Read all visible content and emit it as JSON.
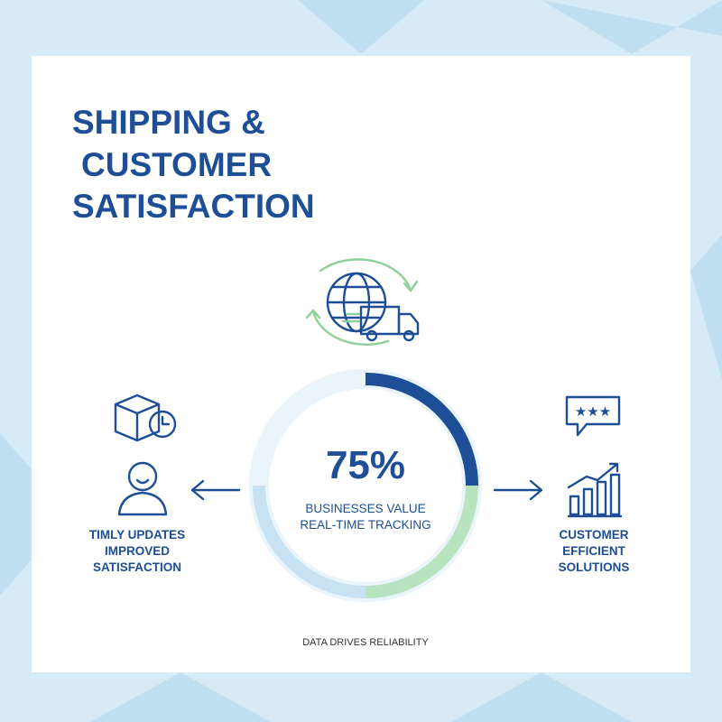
{
  "title": {
    "lines": [
      "SHIPPING &",
      "CUSTOMER",
      "SATISFACTION"
    ]
  },
  "stat": {
    "value": "75%",
    "caption": [
      "BUSINESSES VALUE",
      "REAL-TIME TRACKING"
    ]
  },
  "left": {
    "lines": [
      "TIMLY UPDATES",
      "IMPROVED",
      "SATISFACTION"
    ]
  },
  "right": {
    "lines": [
      "CUSTOMER",
      "EFFICIENT",
      "SOLUTIONS"
    ]
  },
  "footer": "DATA DRIVES RELIABILITY"
}
